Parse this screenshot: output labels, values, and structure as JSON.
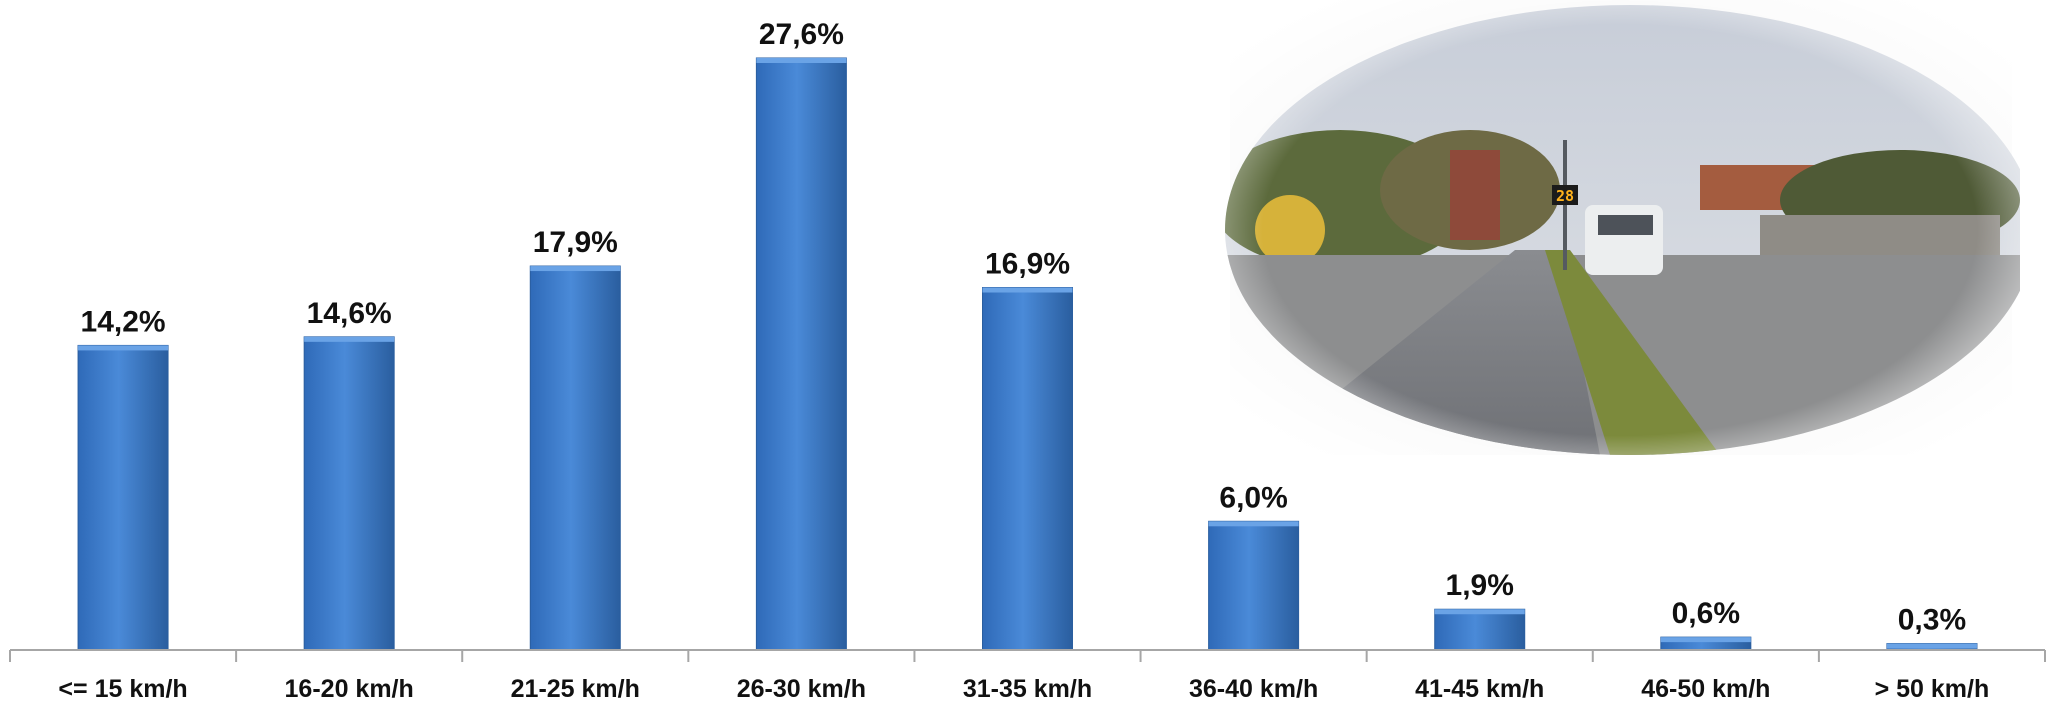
{
  "chart_data": {
    "type": "bar",
    "categories": [
      "<= 15 km/h",
      "16-20 km/h",
      "21-25 km/h",
      "26-30 km/h",
      "31-35 km/h",
      "36-40 km/h",
      "41-45 km/h",
      "46-50 km/h",
      "> 50 km/h"
    ],
    "values": [
      14.2,
      14.6,
      17.9,
      27.6,
      16.9,
      6.0,
      1.9,
      0.6,
      0.3
    ],
    "value_labels": [
      "14,2%",
      "14,6%",
      "17,9%",
      "27,6%",
      "16,9%",
      "6,0%",
      "1,9%",
      "0,6%",
      "0,3%"
    ],
    "title": "",
    "xlabel": "",
    "ylabel": "",
    "ylim": [
      0,
      27.6
    ],
    "grid": false,
    "legend": "none",
    "bar_color": "#3f7fd0",
    "bar_color_dark": "#2a5e9f"
  },
  "photo": {
    "icon": "street-photo",
    "speed_display": "28"
  }
}
